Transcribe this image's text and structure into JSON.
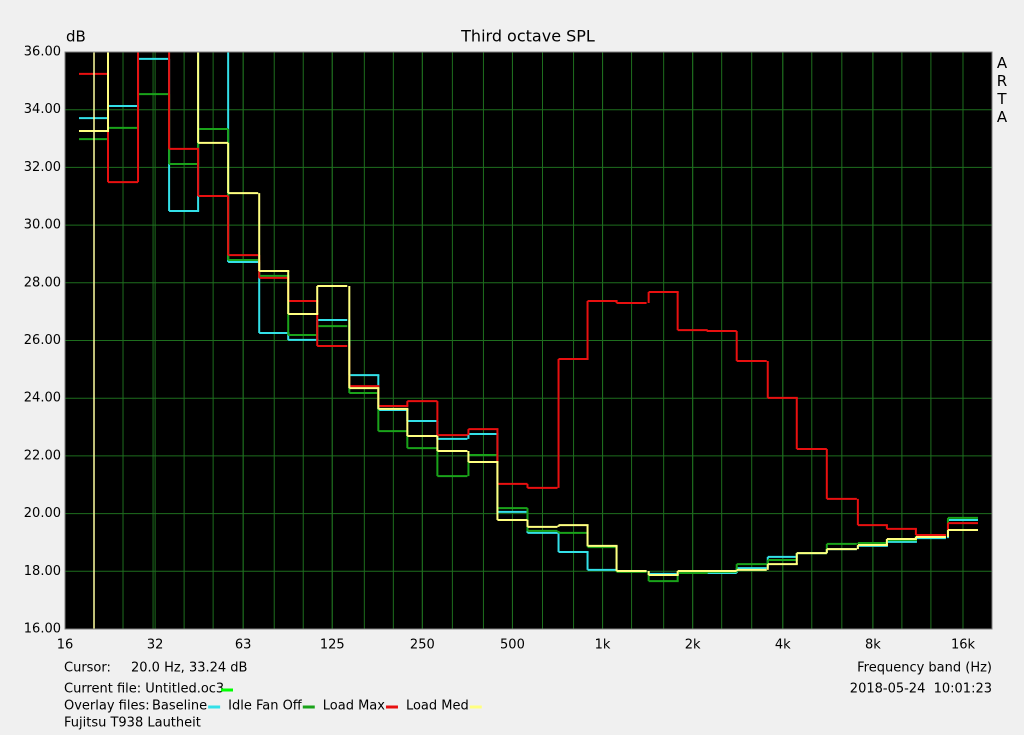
{
  "chart_data": {
    "type": "step",
    "title": "Third octave SPL",
    "y_label": "dB",
    "x_label": "Frequency band (Hz)",
    "log_x": true,
    "grid": true,
    "background": "#000000",
    "grid_color": "#1e6e1e",
    "x": [
      20,
      25,
      31.5,
      40,
      50,
      63,
      80,
      100,
      125,
      160,
      200,
      250,
      315,
      400,
      500,
      630,
      800,
      1000,
      1250,
      1600,
      2000,
      2500,
      3150,
      4000,
      5000,
      6300,
      8000,
      10000,
      12500,
      16000
    ],
    "series": [
      {
        "name": "Baseline",
        "color": "#33e0e8",
        "values": [
          33.71,
          34.13,
          35.76,
          30.49,
          37,
          28.72,
          26.26,
          26.02,
          26.71,
          24.8,
          23.59,
          23.21,
          22.59,
          22.76,
          20.06,
          19.33,
          18.67,
          18.05,
          18.01,
          17.91,
          17.94,
          17.94,
          18.11,
          18.5,
          18.63,
          18.77,
          18.88,
          19.02,
          19.15,
          19.78
        ]
      },
      {
        "name": "Idle Fan Off",
        "color": "#1aa31a",
        "values": [
          32.98,
          33.37,
          34.54,
          32.12,
          33.33,
          28.79,
          28.24,
          26.19,
          26.5,
          24.18,
          22.86,
          22.27,
          21.3,
          22.03,
          20.19,
          19.4,
          19.33,
          18.84,
          17.98,
          17.66,
          17.94,
          17.98,
          18.25,
          18.39,
          18.63,
          18.95,
          18.98,
          19.08,
          19.22,
          19.85
        ]
      },
      {
        "name": "Load Max",
        "color": "#e81010",
        "values": [
          35.24,
          31.49,
          38,
          32.64,
          31.01,
          28.96,
          28.17,
          27.37,
          25.81,
          24.42,
          23.73,
          23.9,
          22.72,
          22.93,
          21.03,
          20.89,
          25.36,
          27.37,
          27.3,
          27.68,
          26.36,
          26.33,
          25.29,
          24.01,
          22.24,
          20.51,
          19.6,
          19.47,
          19.26,
          19.67
        ]
      },
      {
        "name": "Load Med",
        "color": "#ffff80",
        "values": [
          33.26,
          38,
          37,
          37,
          32.85,
          31.11,
          28.41,
          26.92,
          27.89,
          24.35,
          23.63,
          22.69,
          22.17,
          21.79,
          19.78,
          19.54,
          19.6,
          18.88,
          18.01,
          17.87,
          18.01,
          18.01,
          18.05,
          18.25,
          18.63,
          18.77,
          18.91,
          19.12,
          19.19,
          19.43
        ]
      }
    ],
    "xlim": [
      16,
      20000
    ],
    "ylim": [
      16,
      36
    ],
    "xticks": [
      16,
      32,
      63,
      125,
      250,
      500,
      {
        "value": 1000,
        "label": "1k"
      },
      {
        "value": 2000,
        "label": "2k"
      },
      {
        "value": 4000,
        "label": "4k"
      },
      {
        "value": 8000,
        "label": "8k"
      },
      {
        "value": 16000,
        "label": "16k"
      }
    ],
    "yticks": [
      {
        "value": 16,
        "label": "16.00"
      },
      {
        "value": 18,
        "label": "18.00"
      },
      {
        "value": 20,
        "label": "20.00"
      },
      {
        "value": 22,
        "label": "22.00"
      },
      {
        "value": 24,
        "label": "24.00"
      },
      {
        "value": 26,
        "label": "26.00"
      },
      {
        "value": 28,
        "label": "28.00"
      },
      {
        "value": 30,
        "label": "30.00"
      },
      {
        "value": 32,
        "label": "32.00"
      },
      {
        "value": 34,
        "label": "34.00"
      },
      {
        "value": 36,
        "label": "36.00"
      }
    ],
    "cursor_label": "Cursor:",
    "cursor_text": "20.0 Hz, 33.24 dB",
    "cursor_x": 20,
    "cursor_color": "#ffffa0",
    "current_file": "Current file: Untitled.oc3",
    "current_color": "#00ff00",
    "overlay_label": "Overlay files:",
    "timestamp": "2018-05-24  10:01:23",
    "note": "Fujitsu T938 Lautheit",
    "watermark": "ARTA"
  }
}
